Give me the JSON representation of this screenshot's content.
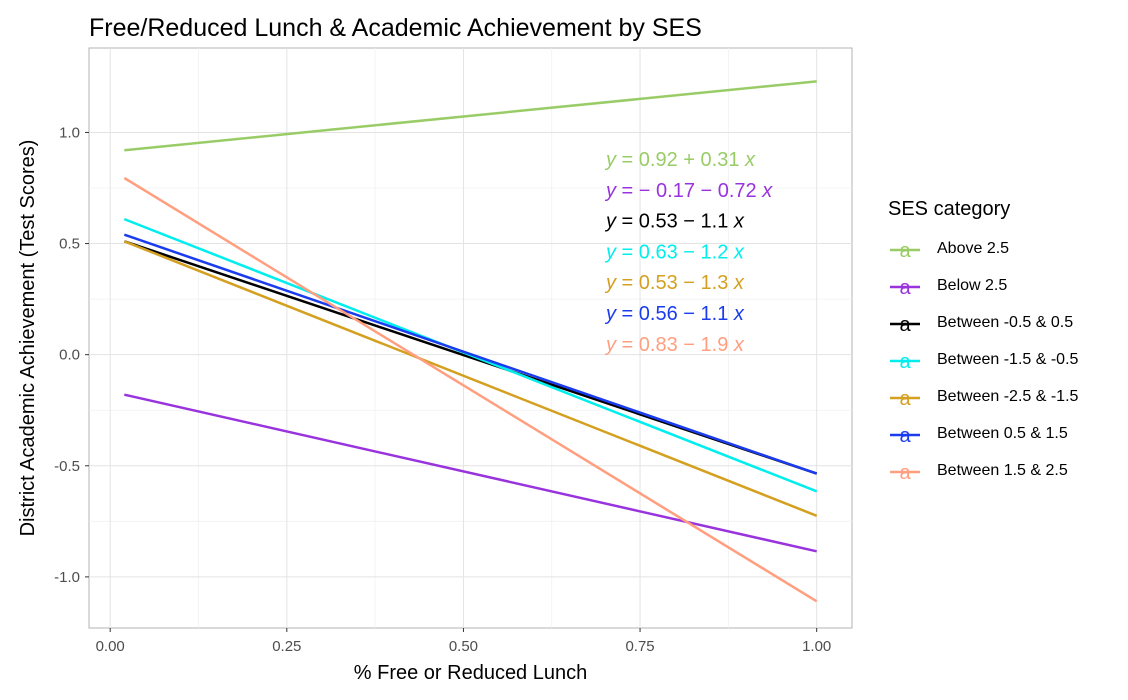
{
  "chart_data": {
    "type": "line",
    "title": "Free/Reduced Lunch & Academic Achievement by SES",
    "xlabel": "% Free or Reduced Lunch",
    "ylabel": "District Academic Achievement (Test Scores)",
    "xlim": [
      -0.03,
      1.05
    ],
    "ylim": [
      -1.23,
      1.38
    ],
    "x_ticks": [
      0,
      0.25,
      0.5,
      0.75,
      1
    ],
    "x_tick_labels": [
      "0.00",
      "0.25",
      "0.50",
      "0.75",
      "1.00"
    ],
    "y_ticks": [
      -1,
      -0.5,
      0,
      0.5,
      1
    ],
    "y_tick_labels": [
      "-1.0",
      "-0.5",
      "0.0",
      "0.5",
      "1.0"
    ],
    "grid": true,
    "legend": {
      "title": "SES category",
      "position": "right"
    },
    "series": [
      {
        "name": "Above 2.5",
        "color": "#99cc66",
        "x": [
          0.02,
          1.0
        ],
        "y": [
          0.92,
          1.23
        ],
        "equation": {
          "lhs": "y",
          "eq": " = 0.92 + 0.31 ",
          "rhs": "x"
        }
      },
      {
        "name": "Below 2.5",
        "color": "#9933dd",
        "x": [
          0.02,
          1.0
        ],
        "y": [
          -0.18,
          -0.885
        ],
        "equation": {
          "lhs": "y",
          "eq": " = − 0.17 − 0.72 ",
          "rhs": "x"
        }
      },
      {
        "name": "Between -0.5 & 0.5",
        "color": "#000000",
        "x": [
          0.02,
          1.0
        ],
        "y": [
          0.51,
          -0.535
        ],
        "equation": {
          "lhs": "y",
          "eq": " = 0.53 − 1.1 ",
          "rhs": "x"
        }
      },
      {
        "name": "Between -1.5 & -0.5",
        "color": "#00eeee",
        "x": [
          0.02,
          1.0
        ],
        "y": [
          0.61,
          -0.615
        ],
        "equation": {
          "lhs": "y",
          "eq": " = 0.63 − 1.2 ",
          "rhs": "x"
        }
      },
      {
        "name": "Between -2.5 & -1.5",
        "color": "#d4a020",
        "x": [
          0.02,
          1.0
        ],
        "y": [
          0.51,
          -0.725
        ],
        "equation": {
          "lhs": "y",
          "eq": " = 0.53 − 1.3 ",
          "rhs": "x"
        }
      },
      {
        "name": "Between 0.5 & 1.5",
        "color": "#1a3cee",
        "x": [
          0.02,
          1.0
        ],
        "y": [
          0.54,
          -0.535
        ],
        "equation": {
          "lhs": "y",
          "eq": " = 0.56 − 1.1 ",
          "rhs": "x"
        }
      },
      {
        "name": "Between 1.5 & 2.5",
        "color": "#ff9f7f",
        "x": [
          0.02,
          1.0
        ],
        "y": [
          0.795,
          -1.11
        ],
        "equation": {
          "lhs": "y",
          "eq": " = 0.83 − 1.9 ",
          "rhs": "x"
        }
      }
    ],
    "legend_key_glyph": "a"
  }
}
